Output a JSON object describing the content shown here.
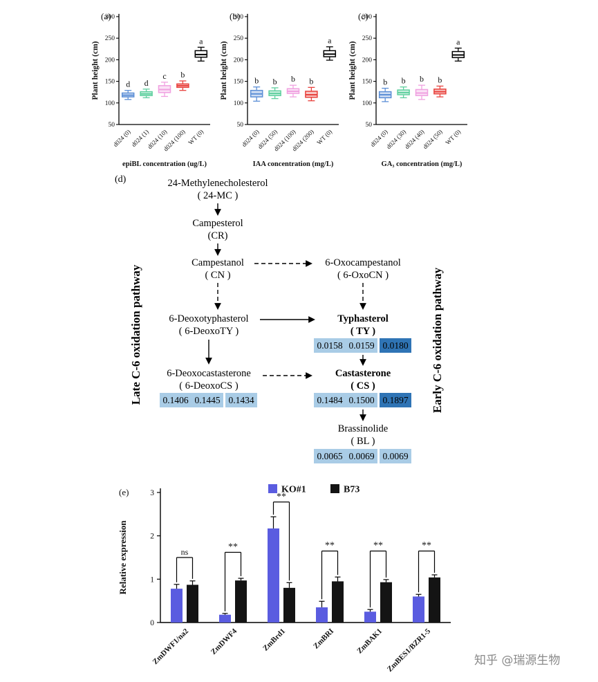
{
  "figure": {
    "watermark": "知乎 @瑞源生物"
  },
  "chart_data": [
    {
      "id": "box-a",
      "type": "box",
      "panel_label": "(a)",
      "ylabel": "Plant height (cm)",
      "xlabel": "epiBL concentration (ug/L)",
      "ylim": [
        50,
        300
      ],
      "yticks": [
        50,
        100,
        150,
        200,
        250,
        300
      ],
      "categories": [
        "d024 (0)",
        "d024 (1)",
        "d024 (10)",
        "d024 (100)",
        "WT (0)"
      ],
      "letters": [
        "d",
        "d",
        "c",
        "b",
        "a"
      ],
      "colors": [
        "#5c8fd6",
        "#5ecf9e",
        "#f0a0e0",
        "#e8413c",
        "#ffffff"
      ],
      "boxes": [
        {
          "low": 108,
          "q1": 114,
          "median": 118,
          "q3": 123,
          "high": 129
        },
        {
          "low": 112,
          "q1": 117,
          "median": 121,
          "q3": 126,
          "high": 132
        },
        {
          "low": 115,
          "q1": 124,
          "median": 131,
          "q3": 140,
          "high": 148
        },
        {
          "low": 129,
          "q1": 136,
          "median": 140,
          "q3": 144,
          "high": 151
        },
        {
          "low": 197,
          "q1": 206,
          "median": 212,
          "q3": 221,
          "high": 229
        }
      ]
    },
    {
      "id": "box-b",
      "type": "box",
      "panel_label": "(b)",
      "ylabel": "Plant height (cm)",
      "xlabel": "IAA concentration (mg/L)",
      "ylim": [
        50,
        300
      ],
      "yticks": [
        50,
        100,
        150,
        200,
        250,
        300
      ],
      "categories": [
        "d024 (0)",
        "d024 (50)",
        "d024 (100)",
        "d024 (200)",
        "WT (0)"
      ],
      "letters": [
        "b",
        "b",
        "b",
        "b",
        "a"
      ],
      "colors": [
        "#5c8fd6",
        "#5ecf9e",
        "#f0a0e0",
        "#e8413c",
        "#ffffff"
      ],
      "boxes": [
        {
          "low": 104,
          "q1": 114,
          "median": 121,
          "q3": 129,
          "high": 137
        },
        {
          "low": 110,
          "q1": 117,
          "median": 122,
          "q3": 128,
          "high": 135
        },
        {
          "low": 114,
          "q1": 122,
          "median": 127,
          "q3": 133,
          "high": 141
        },
        {
          "low": 105,
          "q1": 113,
          "median": 119,
          "q3": 127,
          "high": 136
        },
        {
          "low": 199,
          "q1": 207,
          "median": 213,
          "q3": 221,
          "high": 230
        }
      ]
    },
    {
      "id": "box-c",
      "type": "box",
      "panel_label": "(c)",
      "ylabel": "Plant height (cm)",
      "xlabel": "GA₃ concentration (mg/L)",
      "ylim": [
        50,
        300
      ],
      "yticks": [
        50,
        100,
        150,
        200,
        250,
        300
      ],
      "categories": [
        "d024 (0)",
        "d024 (30)",
        "d024 (40)",
        "d024 (50)",
        "WT (0)"
      ],
      "letters": [
        "b",
        "b",
        "b",
        "b",
        "a"
      ],
      "colors": [
        "#5c8fd6",
        "#5ecf9e",
        "#f0a0e0",
        "#e8413c",
        "#ffffff"
      ],
      "boxes": [
        {
          "low": 103,
          "q1": 112,
          "median": 119,
          "q3": 126,
          "high": 134
        },
        {
          "low": 112,
          "q1": 119,
          "median": 124,
          "q3": 130,
          "high": 137
        },
        {
          "low": 108,
          "q1": 117,
          "median": 123,
          "q3": 131,
          "high": 141
        },
        {
          "low": 114,
          "q1": 121,
          "median": 126,
          "q3": 132,
          "high": 139
        },
        {
          "low": 197,
          "q1": 205,
          "median": 211,
          "q3": 219,
          "high": 227
        }
      ]
    },
    {
      "id": "bar-e",
      "type": "bar",
      "panel_label": "(e)",
      "ylabel": "Relative expression",
      "ylim": [
        0,
        3
      ],
      "yticks": [
        0,
        1,
        2,
        3
      ],
      "categories": [
        "ZmDWF1/na2",
        "ZmDWF4",
        "ZmBrd1",
        "ZmBRI",
        "ZmBAK1",
        "ZmBES1/BZR1-5"
      ],
      "series": [
        {
          "name": "KO#1",
          "color": "#5a5ce0",
          "values": [
            0.78,
            0.18,
            2.17,
            0.35,
            0.25,
            0.6
          ],
          "errors": [
            0.1,
            0.03,
            0.27,
            0.14,
            0.05,
            0.05
          ]
        },
        {
          "name": "B73",
          "color": "#141414",
          "values": [
            0.87,
            0.97,
            0.8,
            0.95,
            0.93,
            1.04
          ],
          "errors": [
            0.09,
            0.05,
            0.12,
            0.1,
            0.06,
            0.06
          ]
        }
      ],
      "significance": [
        {
          "label": "ns",
          "height": 1.5
        },
        {
          "label": "**",
          "height": 1.62
        },
        {
          "label": "**",
          "height": 2.78
        },
        {
          "label": "**",
          "height": 1.65
        },
        {
          "label": "**",
          "height": 1.65
        },
        {
          "label": "**",
          "height": 1.65
        }
      ],
      "legend_position": "top"
    }
  ],
  "pathway": {
    "panel_label": "(d)",
    "left_axis_label": "Late C-6 oxidation pathway",
    "right_axis_label": "Early C-6 oxidation pathway",
    "nodes": {
      "mc": {
        "name": "24-Methylenecholesterol",
        "abbr": "( 24-MC )"
      },
      "cr": {
        "name": "Campesterol",
        "abbr": "(CR)"
      },
      "cn": {
        "name": "Campestanol",
        "abbr": "( CN )"
      },
      "oxocn": {
        "name": "6-Oxocampestanol",
        "abbr": "( 6-OxoCN )"
      },
      "deoxoty": {
        "name": "6-Deoxotyphasterol",
        "abbr": "( 6-DeoxoTY )"
      },
      "ty": {
        "name": "Typhasterol",
        "abbr": "( TY )"
      },
      "deoxocs": {
        "name": "6-Deoxocastasterone",
        "abbr": "( 6-DeoxoCS )"
      },
      "cs": {
        "name": "Castasterone",
        "abbr": "( CS )"
      },
      "bl": {
        "name": "Brassinolide",
        "abbr": "( BL )"
      }
    },
    "heatmaps": {
      "ty": {
        "values": [
          "0.0158",
          "0.0159",
          "0.0180"
        ],
        "shades": [
          "light",
          "light",
          "dark"
        ]
      },
      "deoxocs": {
        "values": [
          "0.1406",
          "0.1445",
          "0.1434"
        ],
        "shades": [
          "light",
          "light",
          "light"
        ]
      },
      "cs": {
        "values": [
          "0.1484",
          "0.1500",
          "0.1897"
        ],
        "shades": [
          "light",
          "light",
          "dark"
        ]
      },
      "bl": {
        "values": [
          "0.0065",
          "0.0069",
          "0.0069"
        ],
        "shades": [
          "light",
          "light",
          "light"
        ]
      }
    },
    "cell_colors": {
      "light": "#a9cce6",
      "dark": "#2f74b5"
    }
  }
}
